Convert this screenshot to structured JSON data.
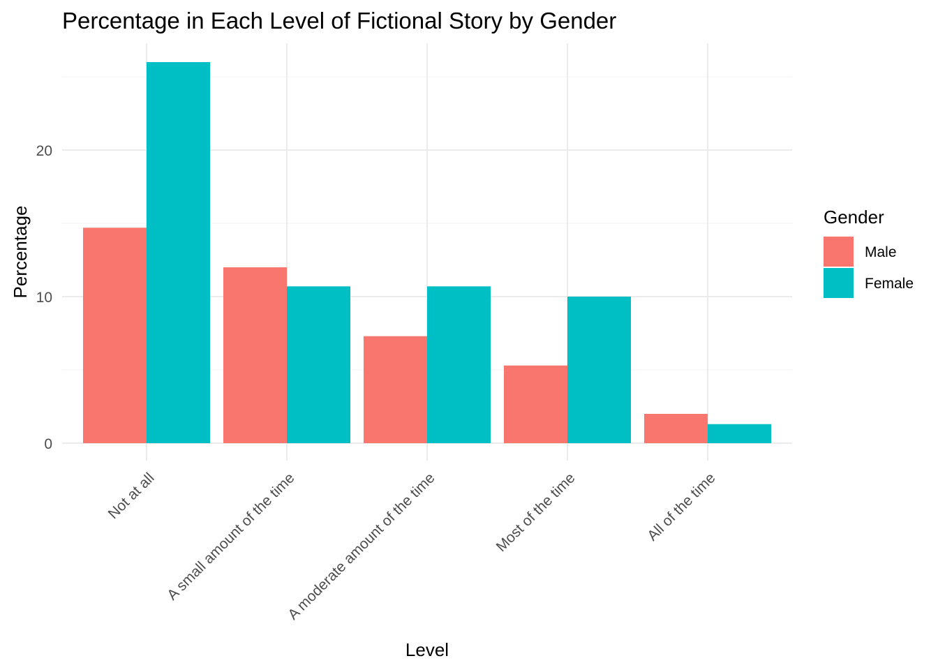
{
  "chart_data": {
    "type": "bar",
    "title": "Percentage in Each Level of Fictional Story by Gender",
    "xlabel": "Level",
    "ylabel": "Percentage",
    "categories": [
      "Not at all",
      "A small amount of the time",
      "A moderate amount of the time",
      "Most of the time",
      "All of the time"
    ],
    "series": [
      {
        "name": "Male",
        "color": "#F8766D",
        "values": [
          14.7,
          12.0,
          7.3,
          5.3,
          2.0
        ]
      },
      {
        "name": "Female",
        "color": "#00BFC4",
        "values": [
          26.0,
          10.7,
          10.7,
          10.0,
          1.3
        ]
      }
    ],
    "ylim": [
      0,
      26
    ],
    "yticks": [
      0,
      10,
      20
    ],
    "grid": true,
    "legend": {
      "title": "Gender",
      "position": "right"
    }
  }
}
